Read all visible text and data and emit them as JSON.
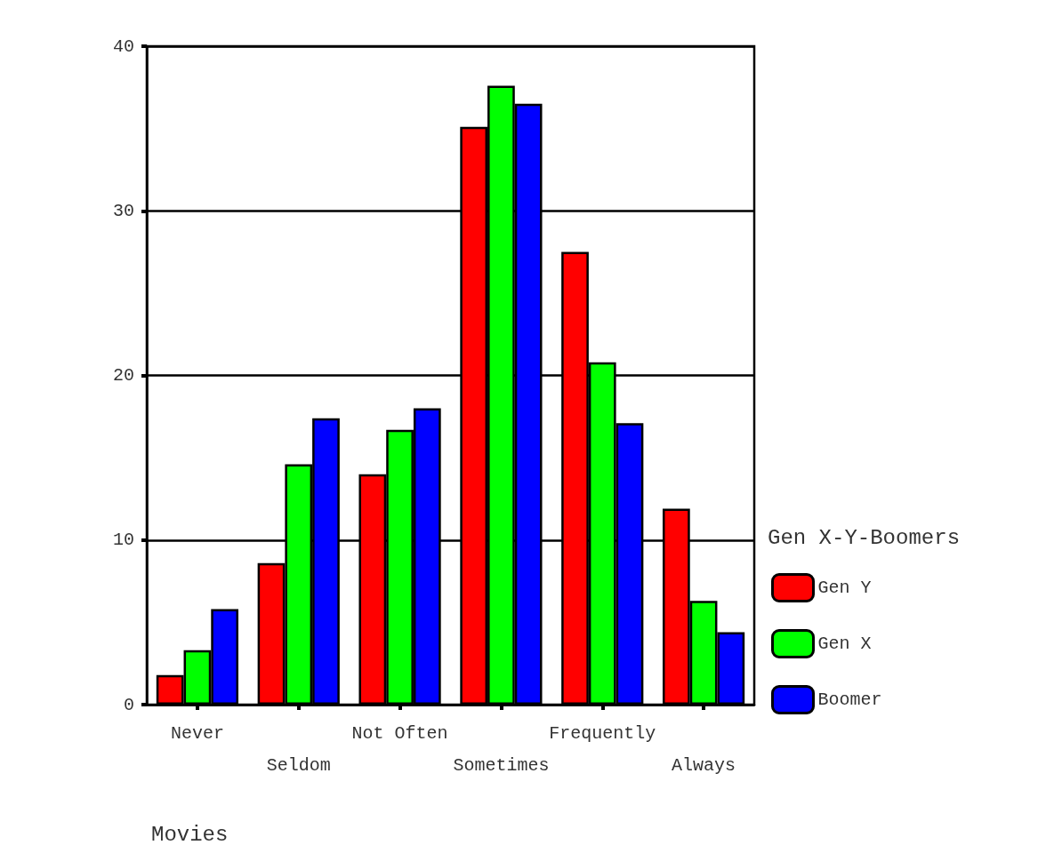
{
  "chart_data": {
    "type": "bar",
    "xlabel": "Movies",
    "legend_title": "Gen X-Y-Boomers",
    "categories": [
      "Never",
      "Seldom",
      "Not Often",
      "Sometimes",
      "Frequently",
      "Always"
    ],
    "series": [
      {
        "name": "Gen Y",
        "color": "#ff0000",
        "values": [
          1.8,
          8.6,
          14.0,
          35.1,
          27.5,
          11.9
        ]
      },
      {
        "name": "Gen X",
        "color": "#00ff00",
        "values": [
          3.3,
          14.6,
          16.7,
          37.6,
          20.8,
          6.3
        ]
      },
      {
        "name": "Boomer",
        "color": "#0000ff",
        "values": [
          5.8,
          17.4,
          18.0,
          36.5,
          17.1,
          4.4
        ]
      }
    ],
    "ylim": [
      0,
      40
    ],
    "yticks": [
      0,
      10,
      20,
      30,
      40
    ],
    "grid": "y",
    "legend": "right"
  }
}
